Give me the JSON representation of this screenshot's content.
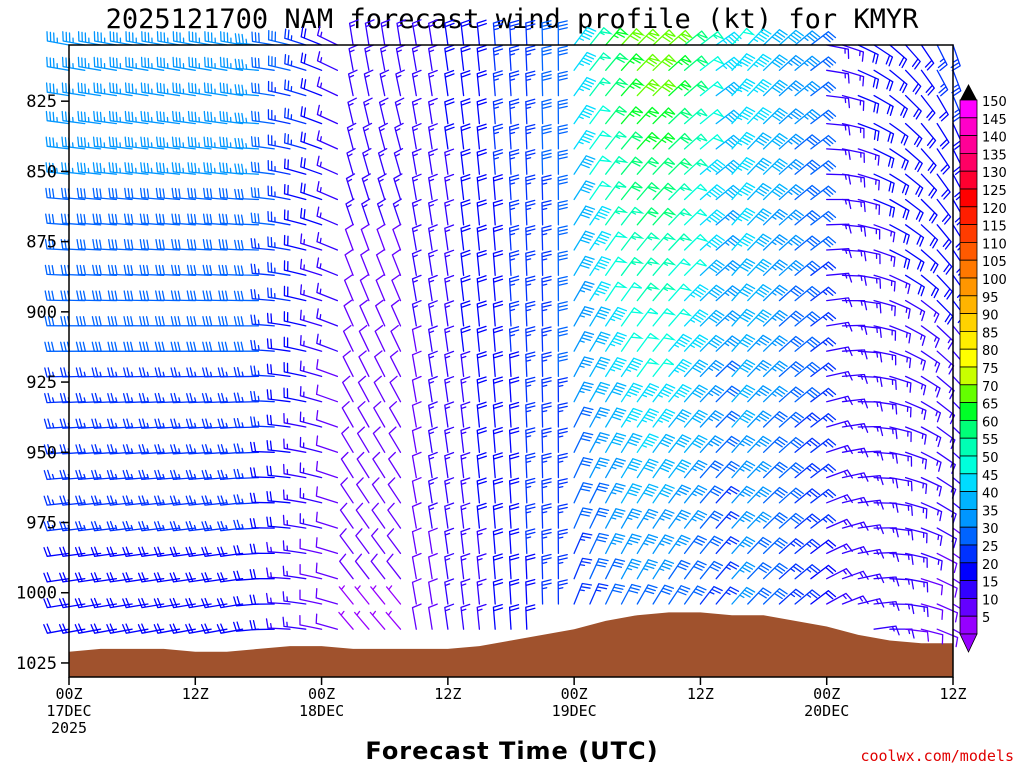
{
  "chart_data": {
    "type": "wind_profile",
    "title": "2025121700 NAM forecast wind profile (kt) for KMYR",
    "xlabel": "Forecast Time (UTC)",
    "ylabel": "",
    "y_ticks": [
      825,
      850,
      875,
      900,
      925,
      950,
      975,
      1000,
      1025
    ],
    "x_ticks": [
      {
        "hour": 0,
        "line1": "00Z",
        "line2": "17DEC",
        "line3": "2025"
      },
      {
        "hour": 12,
        "line1": "12Z",
        "line2": "",
        "line3": ""
      },
      {
        "hour": 24,
        "line1": "00Z",
        "line2": "18DEC",
        "line3": ""
      },
      {
        "hour": 36,
        "line1": "12Z",
        "line2": "",
        "line3": ""
      },
      {
        "hour": 48,
        "line1": "00Z",
        "line2": "19DEC",
        "line3": ""
      },
      {
        "hour": 60,
        "line1": "12Z",
        "line2": "",
        "line3": ""
      },
      {
        "hour": 72,
        "line1": "00Z",
        "line2": "20DEC",
        "line3": ""
      },
      {
        "hour": 84,
        "line1": "12Z",
        "line2": "",
        "line3": ""
      }
    ],
    "xlim": [
      0,
      84
    ],
    "ylim_hpa": [
      805,
      1030
    ],
    "wind_levels_hpa": [
      805,
      814,
      823,
      833,
      842,
      851,
      860,
      869,
      878,
      887,
      896,
      905,
      914,
      923,
      932,
      941,
      950,
      959,
      968,
      977,
      986,
      995,
      1004,
      1013
    ],
    "wind_time_step_h": 1.5,
    "terrain_color": "#a0522d",
    "terrain_surface_hpa": [
      [
        0,
        1021
      ],
      [
        3,
        1020
      ],
      [
        6,
        1020
      ],
      [
        9,
        1020
      ],
      [
        12,
        1021
      ],
      [
        15,
        1021
      ],
      [
        18,
        1020
      ],
      [
        21,
        1019
      ],
      [
        24,
        1019
      ],
      [
        27,
        1020
      ],
      [
        30,
        1020
      ],
      [
        33,
        1020
      ],
      [
        36,
        1020
      ],
      [
        39,
        1019
      ],
      [
        42,
        1017
      ],
      [
        45,
        1015
      ],
      [
        48,
        1013
      ],
      [
        51,
        1010
      ],
      [
        54,
        1008
      ],
      [
        57,
        1007
      ],
      [
        60,
        1007
      ],
      [
        63,
        1008
      ],
      [
        66,
        1008
      ],
      [
        69,
        1010
      ],
      [
        72,
        1012
      ],
      [
        75,
        1015
      ],
      [
        78,
        1017
      ],
      [
        81,
        1018
      ],
      [
        84,
        1018
      ]
    ],
    "colorbar": {
      "unit": "kt",
      "labels": [
        "150",
        "145",
        "140",
        "135",
        "130",
        "125",
        "120",
        "115",
        "110",
        "105",
        "100",
        "95",
        "90",
        "85",
        "80",
        "75",
        "70",
        "65",
        "60",
        "55",
        "50",
        "45",
        "40",
        "35",
        "30",
        "25",
        "20",
        "15",
        "10",
        "5"
      ],
      "colors": [
        "#ff00ff",
        "#ff00c8",
        "#ff0096",
        "#ff0064",
        "#ff0030",
        "#ff0000",
        "#ff1e00",
        "#ff3c00",
        "#ff5a00",
        "#ff7800",
        "#ff9600",
        "#ffb400",
        "#ffd200",
        "#ffee00",
        "#ffff00",
        "#c8ff00",
        "#64ff00",
        "#00ff28",
        "#00ff78",
        "#00ffb4",
        "#00ffdc",
        "#00dcff",
        "#00b4ff",
        "#0096ff",
        "#0064ff",
        "#0032ff",
        "#0000ff",
        "#3200ff",
        "#6400ff",
        "#9600ff"
      ]
    }
  },
  "credit": "coolwx.com/models"
}
